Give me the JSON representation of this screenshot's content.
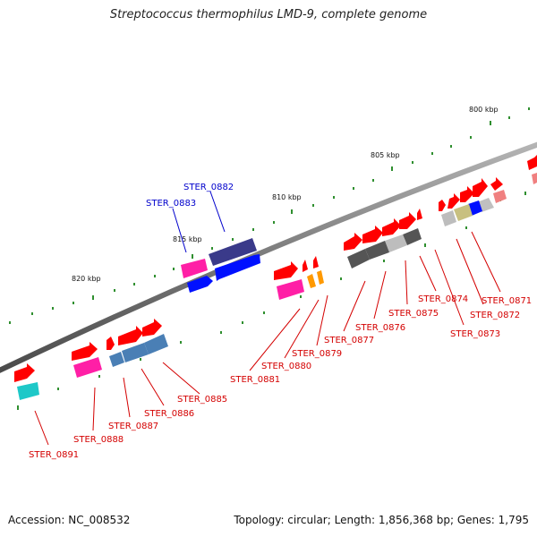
{
  "title": "Streptococcus thermophilus LMD-9, complete genome",
  "accession": "Accession: NC_008532",
  "topology": "Topology: circular;",
  "length": "Length: 1,856,368 bp;",
  "genes": "Genes: 1,795",
  "scale_labels": [
    "800 kbp",
    "805 kbp",
    "810 kbp",
    "815 kbp",
    "820 kbp"
  ],
  "gene_labels": [
    {
      "name": "STER_0871",
      "color": "#d40000"
    },
    {
      "name": "STER_0872",
      "color": "#d40000"
    },
    {
      "name": "STER_0873",
      "color": "#d40000"
    },
    {
      "name": "STER_0874",
      "color": "#d40000"
    },
    {
      "name": "STER_0875",
      "color": "#d40000"
    },
    {
      "name": "STER_0876",
      "color": "#d40000"
    },
    {
      "name": "STER_0877",
      "color": "#d40000"
    },
    {
      "name": "STER_0879",
      "color": "#d40000"
    },
    {
      "name": "STER_0880",
      "color": "#d40000"
    },
    {
      "name": "STER_0881",
      "color": "#d40000"
    },
    {
      "name": "STER_0882",
      "color": "#0000cc"
    },
    {
      "name": "STER_0883",
      "color": "#0000cc"
    },
    {
      "name": "STER_0885",
      "color": "#d40000"
    },
    {
      "name": "STER_0886",
      "color": "#d40000"
    },
    {
      "name": "STER_0887",
      "color": "#d40000"
    },
    {
      "name": "STER_0888",
      "color": "#d40000"
    },
    {
      "name": "STER_0891",
      "color": "#d40000"
    }
  ],
  "colors": {
    "backbone": "#7a7a7a",
    "tick": "#2f8f2f",
    "arrow_red": "#ff0000",
    "magenta": "#ff1fa6",
    "blue": "#0010ff",
    "purple": "#3a3a8a",
    "steel_blue": "#4a7fb5",
    "cyan": "#1ec8c8",
    "orange": "#ff9900",
    "dark_gray": "#555555",
    "light_gray": "#bdbdbd",
    "olive": "#c8c080",
    "pink": "#ff8080"
  }
}
